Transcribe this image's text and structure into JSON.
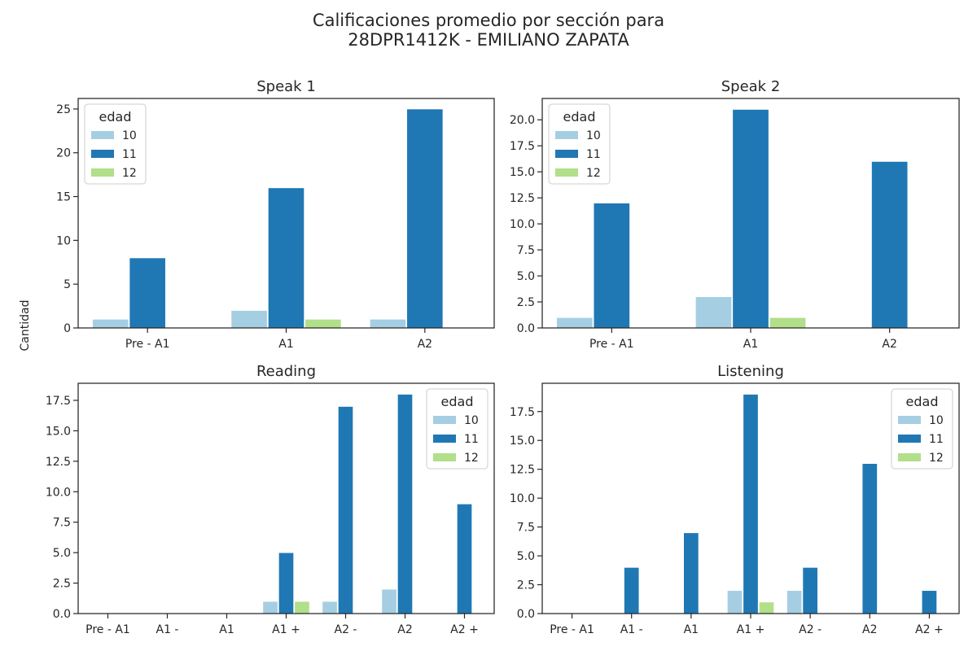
{
  "figure": {
    "title_line1": "Calificaciones promedio por sección para",
    "title_line2": "28DPR1412K - EMILIANO ZAPATA",
    "ylabel": "Cantidad"
  },
  "colors": {
    "10": "#a6cee3",
    "11": "#1f78b4",
    "12": "#b2df8a"
  },
  "chart_data": [
    {
      "type": "bar",
      "title": "Speak 1",
      "categories": [
        "Pre - A1",
        "A1",
        "A2"
      ],
      "series": [
        {
          "name": "10",
          "values": [
            1,
            2,
            1
          ]
        },
        {
          "name": "11",
          "values": [
            8,
            16,
            25
          ]
        },
        {
          "name": "12",
          "values": [
            0,
            1,
            0
          ]
        }
      ],
      "ylim": [
        0,
        26.2
      ],
      "yticks": [
        0,
        5,
        10,
        15,
        20,
        25
      ],
      "ytick_labels": [
        "0",
        "5",
        "10",
        "15",
        "20",
        "25"
      ],
      "legend": {
        "title": "edad",
        "position": "upper-left"
      }
    },
    {
      "type": "bar",
      "title": "Speak 2",
      "categories": [
        "Pre - A1",
        "A1",
        "A2"
      ],
      "series": [
        {
          "name": "10",
          "values": [
            1,
            3,
            0
          ]
        },
        {
          "name": "11",
          "values": [
            12,
            21,
            16
          ]
        },
        {
          "name": "12",
          "values": [
            0,
            1,
            0
          ]
        }
      ],
      "ylim": [
        0,
        22.05
      ],
      "yticks": [
        0,
        2.5,
        5,
        7.5,
        10,
        12.5,
        15,
        17.5,
        20
      ],
      "ytick_labels": [
        "0.0",
        "2.5",
        "5.0",
        "7.5",
        "10.0",
        "12.5",
        "15.0",
        "17.5",
        "20.0"
      ],
      "legend": {
        "title": "edad",
        "position": "upper-left"
      }
    },
    {
      "type": "bar",
      "title": "Reading",
      "categories": [
        "Pre - A1",
        "A1 -",
        "A1",
        "A1 +",
        "A2 -",
        "A2",
        "A2 +"
      ],
      "series": [
        {
          "name": "10",
          "values": [
            0,
            0,
            0,
            1,
            1,
            2,
            0
          ]
        },
        {
          "name": "11",
          "values": [
            0,
            0,
            0,
            5,
            17,
            18,
            9
          ]
        },
        {
          "name": "12",
          "values": [
            0,
            0,
            0,
            1,
            0,
            0,
            0
          ]
        }
      ],
      "ylim": [
        0,
        18.9
      ],
      "yticks": [
        0,
        2.5,
        5,
        7.5,
        10,
        12.5,
        15,
        17.5
      ],
      "ytick_labels": [
        "0.0",
        "2.5",
        "5.0",
        "7.5",
        "10.0",
        "12.5",
        "15.0",
        "17.5"
      ],
      "legend": {
        "title": "edad",
        "position": "upper-right"
      }
    },
    {
      "type": "bar",
      "title": "Listening",
      "categories": [
        "Pre - A1",
        "A1 -",
        "A1",
        "A1 +",
        "A2 -",
        "A2",
        "A2 +"
      ],
      "series": [
        {
          "name": "10",
          "values": [
            0,
            0,
            0,
            2,
            2,
            0,
            0
          ]
        },
        {
          "name": "11",
          "values": [
            0,
            4,
            7,
            19,
            4,
            13,
            2
          ]
        },
        {
          "name": "12",
          "values": [
            0,
            0,
            0,
            1,
            0,
            0,
            0
          ]
        }
      ],
      "ylim": [
        0,
        19.95
      ],
      "yticks": [
        0,
        2.5,
        5,
        7.5,
        10,
        12.5,
        15,
        17.5
      ],
      "ytick_labels": [
        "0.0",
        "2.5",
        "5.0",
        "7.5",
        "10.0",
        "12.5",
        "15.0",
        "17.5"
      ],
      "legend": {
        "title": "edad",
        "position": "upper-right"
      }
    }
  ]
}
